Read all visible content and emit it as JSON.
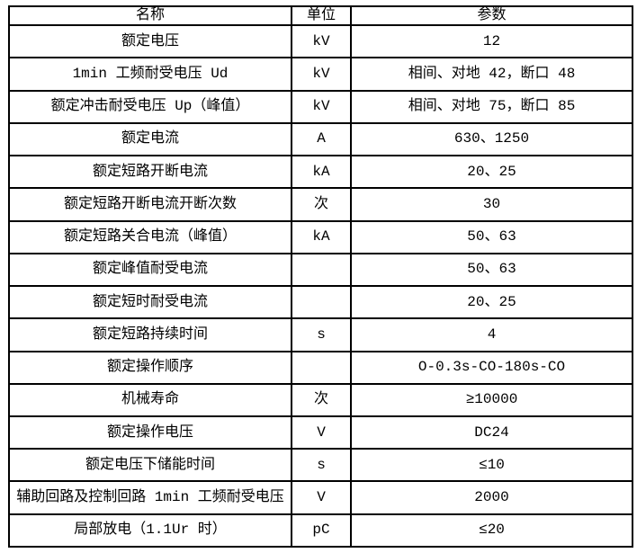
{
  "colors": {
    "background": "#ffffff",
    "border": "#000000",
    "text": "#000000"
  },
  "table": {
    "columns": [
      "名称",
      "单位",
      "参数"
    ],
    "rows": [
      {
        "name": "额定电压",
        "unit": "kV",
        "value": "12"
      },
      {
        "name": "1min 工频耐受电压 Ud",
        "unit": "kV",
        "value": "相间、对地 42，断口 48"
      },
      {
        "name": "额定冲击耐受电压 Up（峰值）",
        "unit": "kV",
        "value": "相间、对地 75，断口 85"
      },
      {
        "name": "额定电流",
        "unit": "A",
        "value": "630、1250"
      },
      {
        "name": "额定短路开断电流",
        "unit": "kA",
        "value": "20、25"
      },
      {
        "name": "额定短路开断电流开断次数",
        "unit": "次",
        "value": "30"
      },
      {
        "name": "额定短路关合电流（峰值）",
        "unit": "kA",
        "value": "50、63"
      },
      {
        "name": "额定峰值耐受电流",
        "unit": "",
        "value": "50、63"
      },
      {
        "name": "额定短时耐受电流",
        "unit": "",
        "value": "20、25"
      },
      {
        "name": "额定短路持续时间",
        "unit": "s",
        "value": "4"
      },
      {
        "name": "额定操作顺序",
        "unit": "",
        "value": "O-0.3s-CO-180s-CO"
      },
      {
        "name": "机械寿命",
        "unit": "次",
        "value": "≥10000"
      },
      {
        "name": "额定操作电压",
        "unit": "V",
        "value": "DC24"
      },
      {
        "name": "额定电压下储能时间",
        "unit": "s",
        "value": "≤10"
      },
      {
        "name": "辅助回路及控制回路 1min 工频耐受电压",
        "unit": "V",
        "value": "2000"
      },
      {
        "name": "局部放电（1.1Ur 时）",
        "unit": "pC",
        "value": "≤20"
      }
    ]
  }
}
